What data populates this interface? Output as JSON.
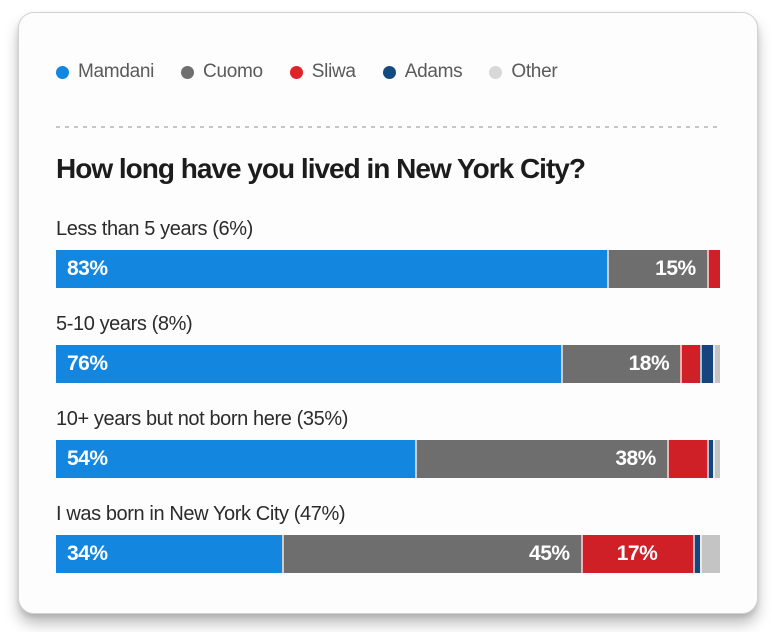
{
  "legend": {
    "items": [
      {
        "label": "Mamdani",
        "color": "#1386e0"
      },
      {
        "label": "Cuomo",
        "color": "#6f6f6f"
      },
      {
        "label": "Sliwa",
        "color": "#e0222a"
      },
      {
        "label": "Adams",
        "color": "#134a80"
      },
      {
        "label": "Other",
        "color": "#d8d8d8"
      }
    ]
  },
  "chart_data": {
    "type": "bar",
    "subtype": "horizontal-stacked-100",
    "title": "How long have you lived in New York City?",
    "categories": [
      "Less than 5 years (6%)",
      "5-10 years (8%)",
      "10+ years but not born here (35%)",
      "I was born in New York City (47%)"
    ],
    "series": [
      {
        "name": "Mamdani",
        "color": "#1386e0",
        "values": [
          83,
          76,
          54,
          34
        ]
      },
      {
        "name": "Cuomo",
        "color": "#6e6e6e",
        "values": [
          15,
          18,
          38,
          45
        ]
      },
      {
        "name": "Sliwa",
        "color": "#d02027",
        "values": [
          2,
          3,
          6,
          17
        ]
      },
      {
        "name": "Adams",
        "color": "#16457e",
        "values": [
          0,
          2,
          1,
          1
        ]
      },
      {
        "name": "Other",
        "color": "#c4c4c4",
        "values": [
          0,
          1,
          1,
          3
        ]
      }
    ],
    "value_labels_shown": [
      [
        "83%",
        "15%",
        "",
        "",
        ""
      ],
      [
        "76%",
        "18%",
        "",
        "",
        ""
      ],
      [
        "54%",
        "38%",
        "",
        "",
        ""
      ],
      [
        "34%",
        "45%",
        "17%",
        "",
        ""
      ]
    ],
    "xlim": [
      0,
      100
    ],
    "legend_position": "top",
    "grid": false
  }
}
